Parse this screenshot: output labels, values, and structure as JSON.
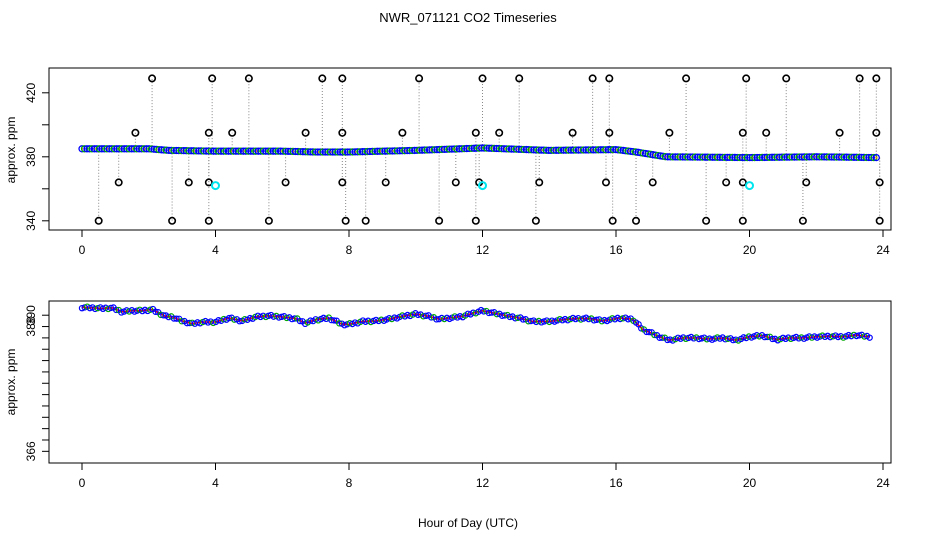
{
  "title": "NWR_071121  CO2 Timeseries",
  "xlabel": "Hour of Day (UTC)",
  "colors": {
    "line": "#ff0000",
    "series_a": "#0000ff",
    "series_b": "#00aa00",
    "flag": "#00e5ee",
    "outlier": "#000000",
    "drop": "#888888",
    "orange": "#ff8c00"
  },
  "chart_data": [
    {
      "type": "scatter",
      "ylabel": "approx. ppm",
      "xlim": [
        0,
        24
      ],
      "ylim": [
        338,
        433
      ],
      "xticks": [
        "0",
        "4",
        "8",
        "12",
        "16",
        "20",
        "24"
      ],
      "yticks": [
        "340",
        "380",
        "420"
      ],
      "minor_yticks": [
        360,
        400
      ],
      "baseline": [
        [
          0,
          385
        ],
        [
          2,
          385
        ],
        [
          2.6,
          384
        ],
        [
          4,
          383.5
        ],
        [
          6,
          383.5
        ],
        [
          7,
          383
        ],
        [
          8,
          383
        ],
        [
          10,
          384
        ],
        [
          12,
          385.5
        ],
        [
          14,
          384
        ],
        [
          16,
          384.5
        ],
        [
          16.6,
          383
        ],
        [
          17.5,
          380
        ],
        [
          20,
          379.5
        ],
        [
          22,
          380
        ],
        [
          23.8,
          379.5
        ]
      ],
      "high_outliers": [
        2.1,
        3.9,
        5.0,
        7.2,
        7.8,
        10.1,
        12.0,
        13.1,
        15.3,
        15.8,
        18.1,
        19.9,
        21.1,
        23.3,
        23.8
      ],
      "low_outliers": [
        0.5,
        2.7,
        3.8,
        5.6,
        7.9,
        8.5,
        10.7,
        11.8,
        13.6,
        15.9,
        16.6,
        18.7,
        19.8,
        21.6,
        23.9
      ],
      "mid_outliers_y395": [
        1.6,
        3.8,
        4.5,
        6.7,
        7.8,
        9.6,
        11.8,
        12.5,
        14.7,
        15.8,
        17.6,
        19.8,
        20.5,
        22.7,
        23.8
      ],
      "mid_outliers_y364": [
        1.1,
        3.2,
        3.8,
        6.1,
        7.8,
        9.1,
        11.2,
        11.9,
        13.7,
        15.7,
        17.1,
        19.3,
        19.8,
        21.7,
        23.9
      ],
      "cyan_flags": [
        [
          4.0,
          362
        ],
        [
          12.0,
          362
        ],
        [
          20.0,
          362
        ]
      ]
    },
    {
      "type": "line",
      "ylabel": "approx. ppm",
      "xlim": [
        0,
        24
      ],
      "ylim": [
        365,
        391.8
      ],
      "xticks": [
        "0",
        "4",
        "8",
        "12",
        "16",
        "20",
        "24"
      ],
      "yticks": [
        "366",
        "388",
        "390"
      ],
      "tick_values": [
        366,
        368,
        370,
        372,
        374,
        376,
        378,
        380,
        382,
        384,
        386,
        388,
        390
      ],
      "x": [
        0,
        0.3,
        0.6,
        0.9,
        1.2,
        1.5,
        1.8,
        2.1,
        2.3,
        2.5,
        2.7,
        3.0,
        3.3,
        3.6,
        4.0,
        4.4,
        4.8,
        5.2,
        5.6,
        6.0,
        6.4,
        6.7,
        7.0,
        7.4,
        7.8,
        8.0,
        8.4,
        8.8,
        9.2,
        9.6,
        10.0,
        10.4,
        10.7,
        11.0,
        11.4,
        11.8,
        12.0,
        12.4,
        12.8,
        13.1,
        13.5,
        14.0,
        14.4,
        14.8,
        15.2,
        15.6,
        16.1,
        16.5,
        16.8,
        17.0,
        17.3,
        17.6,
        18.0,
        18.4,
        18.8,
        19.2,
        19.6,
        20.0,
        20.4,
        20.8,
        21.2,
        21.6,
        22.0,
        22.4,
        22.8,
        23.2,
        23.6
      ],
      "y": [
        391.4,
        391.3,
        391.2,
        391.3,
        390.6,
        390.8,
        390.8,
        391.0,
        390.4,
        389.8,
        389.7,
        389.0,
        388.5,
        388.8,
        388.8,
        389.5,
        389.0,
        389.7,
        389.9,
        389.7,
        389.4,
        388.6,
        389.2,
        389.5,
        388.4,
        388.4,
        388.9,
        389.0,
        389.3,
        389.8,
        390.2,
        389.8,
        389.3,
        389.5,
        389.8,
        390.5,
        390.8,
        390.3,
        389.8,
        389.5,
        388.9,
        388.9,
        389.2,
        389.4,
        389.4,
        389.0,
        389.5,
        389.3,
        387.5,
        387.0,
        386.2,
        385.6,
        386.0,
        386.0,
        385.8,
        386.0,
        385.6,
        386.2,
        386.4,
        385.7,
        386.0,
        386.0,
        386.2,
        386.3,
        386.2,
        386.5,
        386.2
      ]
    }
  ]
}
